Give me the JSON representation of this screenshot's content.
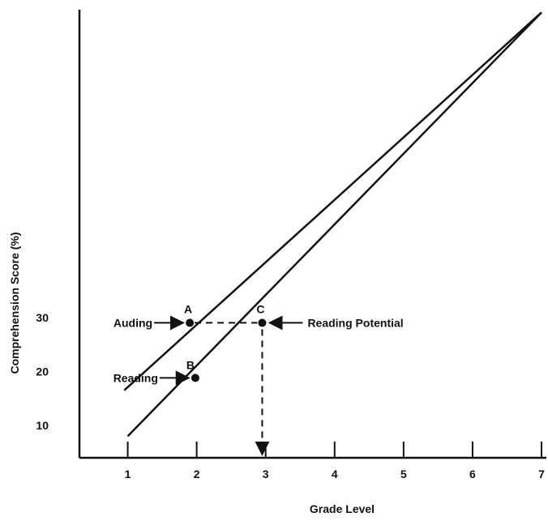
{
  "chart_data": {
    "type": "line",
    "title": "",
    "xlabel": "Grade Level",
    "ylabel": "Comprehension Score (%)",
    "x_ticks": [
      "1",
      "2",
      "3",
      "4",
      "5",
      "6",
      "7"
    ],
    "y_ticks": [
      "10",
      "20",
      "30"
    ],
    "xlim": [
      0.3,
      7
    ],
    "ylim": [
      4,
      87
    ],
    "series": [
      {
        "name": "Auding",
        "x": [
          0.95,
          7.0
        ],
        "y": [
          16.5,
          86.5
        ]
      },
      {
        "name": "Reading",
        "x": [
          1.0,
          7.0
        ],
        "y": [
          8.0,
          86.5
        ]
      }
    ],
    "points": [
      {
        "label": "A",
        "x": 1.9,
        "y": 29.0
      },
      {
        "label": "B",
        "x": 1.98,
        "y": 18.8
      },
      {
        "label": "C",
        "x": 2.95,
        "y": 29.0
      }
    ],
    "annotations": [
      {
        "text": "Auding",
        "target": "A"
      },
      {
        "text": "Reading",
        "target": "B"
      },
      {
        "text": "Reading Potential",
        "target": "C"
      }
    ],
    "guides": [
      {
        "from": "A",
        "to": "C",
        "style": "dashed"
      },
      {
        "from": "C",
        "to_x_axis": 2.95,
        "style": "dashed-arrow"
      }
    ],
    "colors": {
      "ink": "#111111",
      "background": "#ffffff"
    }
  }
}
